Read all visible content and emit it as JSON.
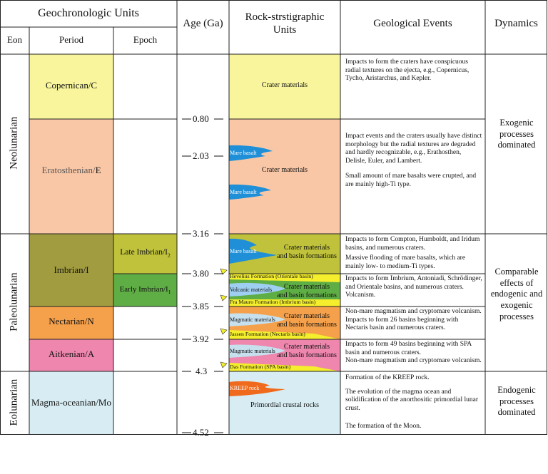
{
  "header": {
    "units": "Geochronologic Units",
    "eon": "Eon",
    "period": "Period",
    "epoch": "Epoch",
    "age": "Age (Ga)",
    "rock_line1": "Rock-strstigraphic",
    "rock_line2": "Units",
    "events": "Geological Events",
    "dynamics": "Dynamics"
  },
  "eons": {
    "neo": "Neolunarian",
    "paleo": "Paleolunarian",
    "eo": "Eolunarian"
  },
  "periods": {
    "copernican": "Copernican/C",
    "eratosthenian_a": "Eratosthenian/",
    "eratosthenian_b": "E",
    "imbrian": "Imbrian/I",
    "nectarian": "Nectarian/N",
    "aitkenian": "Aitkenian/A",
    "magma": "Magma-oceanian/Mo"
  },
  "epochs": {
    "late": "Late Imbrian/I",
    "late_sub": "2",
    "early": "Early Imbrian/I",
    "early_sub": "1"
  },
  "ages": [
    "0.80",
    "2.03",
    "3.16",
    "3.80",
    "3.85",
    "3.92",
    "4.3",
    "4.52"
  ],
  "rocks": {
    "crater": "Crater materials",
    "crater_basin_1": "Crater materials",
    "crater_basin_2": "and basin formations",
    "mare": "Mare basalt",
    "volcanic": "Volcanic materials",
    "magmatic": "Magmatic materials",
    "kreep": "KREEP rock",
    "primordial": "Primordial crustal rocks",
    "hevelius": "Hevelius Formation (Orientale basin)",
    "fra_mauro": "Fra Mauro Formation (Imbrium basin)",
    "jassen": "Jassen Formation (Nectaris basin)",
    "das": "Das Formation (SPA basin)"
  },
  "events": {
    "copernican": "Impacts to form the craters have conspicuous radial textures on the ejecta, e.g., Copernicus, Tycho, Aristarchus, and Kepler.",
    "erat_1": "Impact events and the craters usually have distinct morphology but the radial textures are degraded and hardly recognizable, e.g., Erathosthen, Delisle, Euler, and Lambert.",
    "erat_2": "Small amount of mare basalts were crupted, and are mainly high-Ti type.",
    "late_1": "Impacts to form Compton, Humboldt, and Iridum basins, and numerous craters.",
    "late_2": "Massive flooding of mare basalts, which are mainly low- to medium-Ti types.",
    "early_1": "Impacts to form Imbrium, Antoniadi, Schrödinger, and Orientale basins, and numerous craters.",
    "early_2": "Volcanism.",
    "nect_1": "Non-mare magmatism and cryptomare volcanism.",
    "nect_2": "Impacts to form 26 basins beginning with Nectaris basin and numerous craters.",
    "ait_1": "Impacts to form 49 basins beginning with SPA basin and numerous craters.",
    "ait_2": "Non-mare magmatism and cryptomare volcanism.",
    "magma_1": "Formation of the KREEP rock.",
    "magma_2": "The evolution of the magma ocean and solidification of the anorthositic primordial lunar crust.",
    "magma_3": "The formation of the Moon."
  },
  "dynamics": {
    "exo": "Exogenic processes dominated",
    "comp": "Comparable effects of endogenic and exogenic processes",
    "endo": "Endogenic processes dominated"
  },
  "colors": {
    "copernican": "#f8f59d",
    "eratosthenian": "#f9c7a6",
    "imbrian": "#a19c3f",
    "late_imbrian": "#bfc23a",
    "early_imbrian": "#5fad45",
    "nectarian": "#f5a04b",
    "aitkenian": "#ee86ad",
    "magma": "#d8edf3",
    "mare_blue": "#1f8fd8",
    "formation_yellow": "#f4ee2c",
    "kreep_orange": "#ef6a1c",
    "grid": "#222222"
  }
}
